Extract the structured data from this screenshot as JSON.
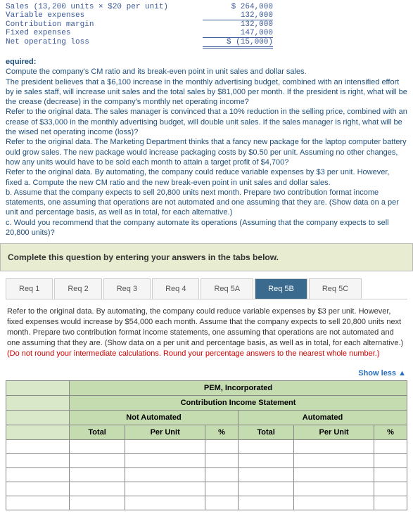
{
  "financials": {
    "rows": [
      {
        "label": "Sales (13,200 units × $20 per unit)",
        "value": "$ 264,000"
      },
      {
        "label": "Variable expenses",
        "value": "132,000",
        "underline": true
      },
      {
        "label": "Contribution margin",
        "value": "132,000"
      },
      {
        "label": "Fixed expenses",
        "value": "147,000",
        "underline": true
      },
      {
        "label": "Net operating loss",
        "value": "$ (15,000)",
        "double": true
      }
    ]
  },
  "question": {
    "heading": "equired:",
    "body": "Compute the company's CM ratio and its break-even point in unit sales and dollar sales.\n The president believes that a $6,100 increase in the monthly advertising budget, combined with an intensified effort by ie sales staff, will increase unit sales and the total sales by $81,000 per month. If the president is right, what will be the crease (decrease) in the company's monthly net operating income?\n Refer to the original data. The sales manager is convinced that a 10% reduction in the selling price, combined with an crease of $33,000 in the monthly advertising budget, will double unit sales. If the sales manager is right, what will be the wised net operating income (loss)?\n Refer to the original data. The Marketing Department thinks that a fancy new package for the laptop computer battery ould grow sales. The new package would increase packaging costs by $0.50 per unit. Assuming no other changes, how any units would have to be sold each month to attain a target profit of $4,700?\n Refer to the original data. By automating, the company could reduce variable expenses by $3 per unit. However, fixed <penses would increase by $54,000 each month.\n a. Compute the new CM ratio and the new break-even point in unit sales and dollar sales.\n b. Assume that the company expects to sell 20,800 units next month. Prepare two contribution format income statements, one assuming that operations are not automated and one assuming that they are. (Show data on a per unit and percentage basis, as well as in total, for each alternative.)\n c. Would you recommend that the company automate its operations (Assuming that the company expects to sell 20,800 units)?"
  },
  "completeBar": "Complete this question by entering your answers in the tabs below.",
  "tabs": [
    "Req 1",
    "Req 2",
    "Req 3",
    "Req 4",
    "Req 5A",
    "Req 5B",
    "Req 5C"
  ],
  "activeTab": 5,
  "tabDesc": {
    "black": "Refer to the original data. By automating, the company could reduce variable expenses by $3 per unit. However, fixed expenses would increase by $54,000 each month. Assume that the company expects to sell 20,800 units next month. Prepare two contribution format income statements, one assuming that operations are not automated and one assuming that they are. (Show data on a per unit and percentage basis, as well as in total, for each alternative.) ",
    "red": "(Do not round your intermediate calculations. Round your percentage answers to the nearest whole number.)"
  },
  "showLess": "Show less",
  "table": {
    "title1": "PEM, Incorporated",
    "title2": "Contribution Income Statement",
    "group1": "Not Automated",
    "group2": "Automated",
    "cols": [
      "Total",
      "Per Unit",
      "%",
      "Total",
      "Per Unit",
      "%"
    ],
    "bodyRows": 5
  }
}
